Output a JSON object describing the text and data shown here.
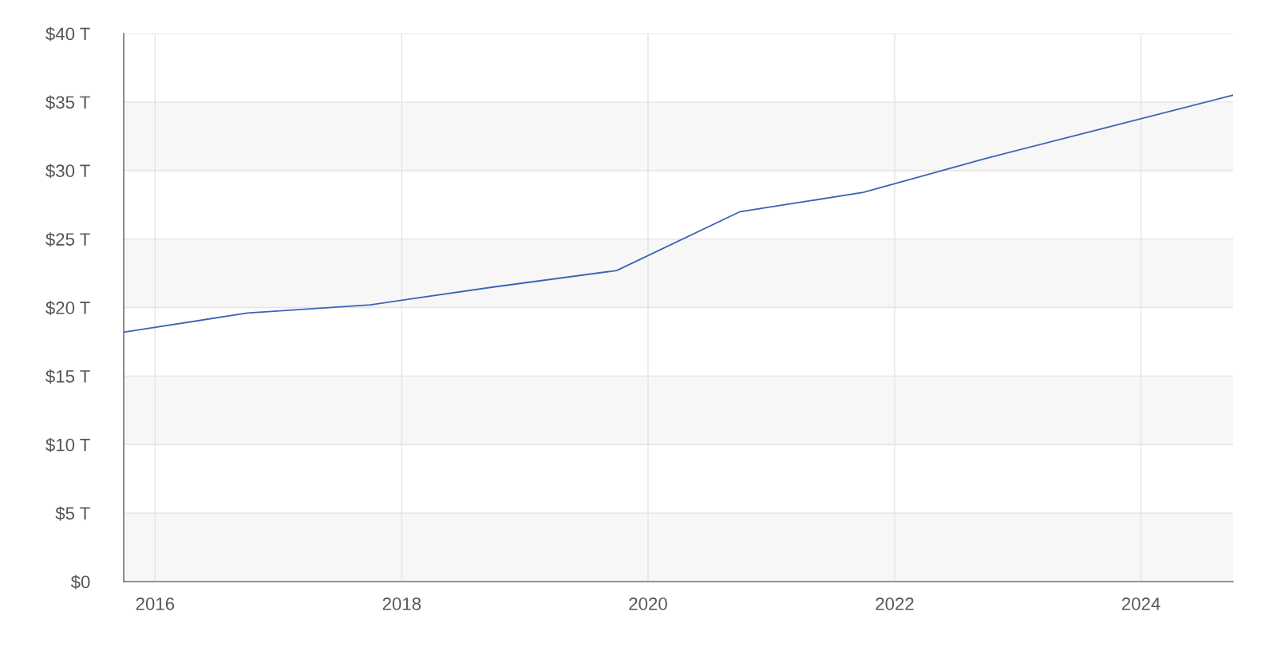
{
  "chart_data": {
    "type": "line",
    "x": [
      "2015-09-30",
      "2016-09-30",
      "2017-09-30",
      "2018-09-30",
      "2019-09-30",
      "2020-09-30",
      "2021-09-30",
      "2022-09-30",
      "2023-09-30",
      "2024-09-30"
    ],
    "series": [
      {
        "color": "#3b64b3",
        "values": [
          18.2,
          19.6,
          20.2,
          21.5,
          22.7,
          27.0,
          28.4,
          30.9,
          33.2,
          35.5
        ]
      }
    ],
    "xlim": [
      "2015-09-30",
      "2024-09-30"
    ],
    "xticks": [
      {
        "value": "2016-01-01",
        "label": "2016"
      },
      {
        "value": "2018-01-01",
        "label": "2018"
      },
      {
        "value": "2020-01-01",
        "label": "2020"
      },
      {
        "value": "2022-01-01",
        "label": "2022"
      },
      {
        "value": "2024-01-01",
        "label": "2024"
      }
    ],
    "ylim": [
      0,
      40
    ],
    "yticks": [
      {
        "value": 0,
        "label": "$0"
      },
      {
        "value": 5,
        "label": "$5 T"
      },
      {
        "value": 10,
        "label": "$10 T"
      },
      {
        "value": 15,
        "label": "$15 T"
      },
      {
        "value": 20,
        "label": "$20 T"
      },
      {
        "value": 25,
        "label": "$25 T"
      },
      {
        "value": 30,
        "label": "$30 T"
      },
      {
        "value": 35,
        "label": "$35 T"
      },
      {
        "value": 40,
        "label": "$40 T"
      }
    ],
    "grid": true,
    "legend": false,
    "marker": "none",
    "line_style": "solid"
  }
}
